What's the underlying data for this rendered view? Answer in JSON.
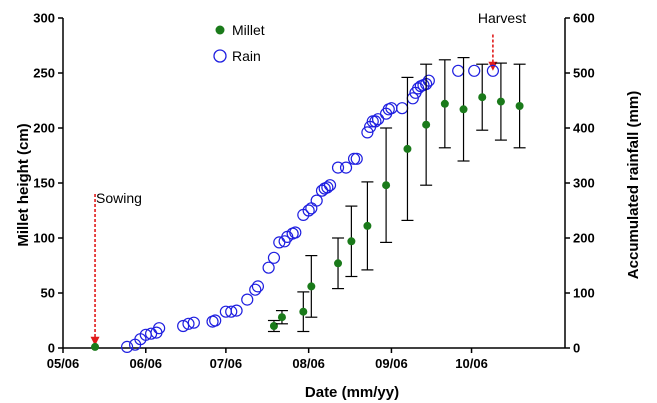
{
  "chart_data": {
    "type": "scatter",
    "xlabel": "Date (mm/yy)",
    "ylabel_left": "Millet height (cm)",
    "ylabel_right": "Accumulated rainfall (mm)",
    "x_ticks": [
      "05/06",
      "06/06",
      "07/06",
      "08/06",
      "09/06",
      "10/06"
    ],
    "x_tick_dates": [
      "2006-05-01",
      "2006-06-01",
      "2006-07-01",
      "2006-08-01",
      "2006-09-01",
      "2006-10-01"
    ],
    "x_range": [
      "2006-05-01",
      "2006-11-05"
    ],
    "ylim_left": [
      0,
      300
    ],
    "yticks_left": [
      0,
      50,
      100,
      150,
      200,
      250,
      300
    ],
    "ylim_right": [
      0,
      600
    ],
    "yticks_right": [
      0,
      100,
      200,
      300,
      400,
      500,
      600
    ],
    "legend": {
      "placement": "top-left",
      "items": [
        "Millet",
        "Rain"
      ]
    },
    "colors": {
      "millet": "#1a7a1a",
      "rain": "#1f1fe0",
      "arrow": "#e01a1a",
      "axis": "#000000"
    },
    "series": [
      {
        "name": "Millet",
        "axis": "left",
        "marker": "filled-circle",
        "points": [
          {
            "x": "2006-05-13",
            "y": 1,
            "err": 0
          },
          {
            "x": "2006-07-19",
            "y": 20,
            "err": 5
          },
          {
            "x": "2006-07-22",
            "y": 28,
            "err": 6
          },
          {
            "x": "2006-07-30",
            "y": 33,
            "err": 18
          },
          {
            "x": "2006-08-02",
            "y": 56,
            "err": 28
          },
          {
            "x": "2006-08-12",
            "y": 77,
            "err": 23
          },
          {
            "x": "2006-08-17",
            "y": 97,
            "err": 32
          },
          {
            "x": "2006-08-23",
            "y": 111,
            "err": 40
          },
          {
            "x": "2006-08-30",
            "y": 148,
            "err": 52
          },
          {
            "x": "2006-09-07",
            "y": 181,
            "err": 65
          },
          {
            "x": "2006-09-14",
            "y": 203,
            "err": 55
          },
          {
            "x": "2006-09-21",
            "y": 222,
            "err": 40
          },
          {
            "x": "2006-09-28",
            "y": 217,
            "err": 47
          },
          {
            "x": "2006-10-05",
            "y": 228,
            "err": 30
          },
          {
            "x": "2006-10-12",
            "y": 224,
            "err": 35
          },
          {
            "x": "2006-10-19",
            "y": 220,
            "err": 38
          }
        ]
      },
      {
        "name": "Rain",
        "axis": "right",
        "marker": "open-circle",
        "points": [
          {
            "x": "2006-05-25",
            "y": 2
          },
          {
            "x": "2006-05-28",
            "y": 6
          },
          {
            "x": "2006-05-30",
            "y": 16
          },
          {
            "x": "2006-06-01",
            "y": 24
          },
          {
            "x": "2006-06-03",
            "y": 26
          },
          {
            "x": "2006-06-05",
            "y": 28
          },
          {
            "x": "2006-06-06",
            "y": 36
          },
          {
            "x": "2006-06-15",
            "y": 40
          },
          {
            "x": "2006-06-17",
            "y": 44
          },
          {
            "x": "2006-06-19",
            "y": 46
          },
          {
            "x": "2006-06-26",
            "y": 48
          },
          {
            "x": "2006-06-27",
            "y": 50
          },
          {
            "x": "2006-07-01",
            "y": 66
          },
          {
            "x": "2006-07-03",
            "y": 66
          },
          {
            "x": "2006-07-05",
            "y": 68
          },
          {
            "x": "2006-07-09",
            "y": 88
          },
          {
            "x": "2006-07-12",
            "y": 106
          },
          {
            "x": "2006-07-13",
            "y": 112
          },
          {
            "x": "2006-07-17",
            "y": 146
          },
          {
            "x": "2006-07-19",
            "y": 164
          },
          {
            "x": "2006-07-21",
            "y": 192
          },
          {
            "x": "2006-07-23",
            "y": 194
          },
          {
            "x": "2006-07-24",
            "y": 202
          },
          {
            "x": "2006-07-26",
            "y": 208
          },
          {
            "x": "2006-07-27",
            "y": 210
          },
          {
            "x": "2006-07-30",
            "y": 242
          },
          {
            "x": "2006-08-01",
            "y": 250
          },
          {
            "x": "2006-08-02",
            "y": 254
          },
          {
            "x": "2006-08-04",
            "y": 268
          },
          {
            "x": "2006-08-06",
            "y": 286
          },
          {
            "x": "2006-08-07",
            "y": 290
          },
          {
            "x": "2006-08-08",
            "y": 292
          },
          {
            "x": "2006-08-09",
            "y": 296
          },
          {
            "x": "2006-08-12",
            "y": 328
          },
          {
            "x": "2006-08-15",
            "y": 328
          },
          {
            "x": "2006-08-18",
            "y": 344
          },
          {
            "x": "2006-08-19",
            "y": 344
          },
          {
            "x": "2006-08-23",
            "y": 392
          },
          {
            "x": "2006-08-24",
            "y": 402
          },
          {
            "x": "2006-08-25",
            "y": 412
          },
          {
            "x": "2006-08-26",
            "y": 412
          },
          {
            "x": "2006-08-27",
            "y": 416
          },
          {
            "x": "2006-08-30",
            "y": 426
          },
          {
            "x": "2006-08-31",
            "y": 434
          },
          {
            "x": "2006-09-01",
            "y": 436
          },
          {
            "x": "2006-09-05",
            "y": 436
          },
          {
            "x": "2006-09-09",
            "y": 454
          },
          {
            "x": "2006-09-10",
            "y": 464
          },
          {
            "x": "2006-09-11",
            "y": 472
          },
          {
            "x": "2006-09-12",
            "y": 476
          },
          {
            "x": "2006-09-13",
            "y": 478
          },
          {
            "x": "2006-09-14",
            "y": 480
          },
          {
            "x": "2006-09-15",
            "y": 486
          },
          {
            "x": "2006-09-26",
            "y": 504
          },
          {
            "x": "2006-10-02",
            "y": 504
          },
          {
            "x": "2006-10-09",
            "y": 504
          }
        ]
      }
    ],
    "annotations": [
      {
        "label": "Sowing",
        "x": "2006-05-13",
        "arrow_from": 140,
        "arrow_to": 2
      },
      {
        "label": "Harvest",
        "x": "2006-10-09",
        "arrow_from": 285,
        "arrow_to": 252
      }
    ]
  }
}
